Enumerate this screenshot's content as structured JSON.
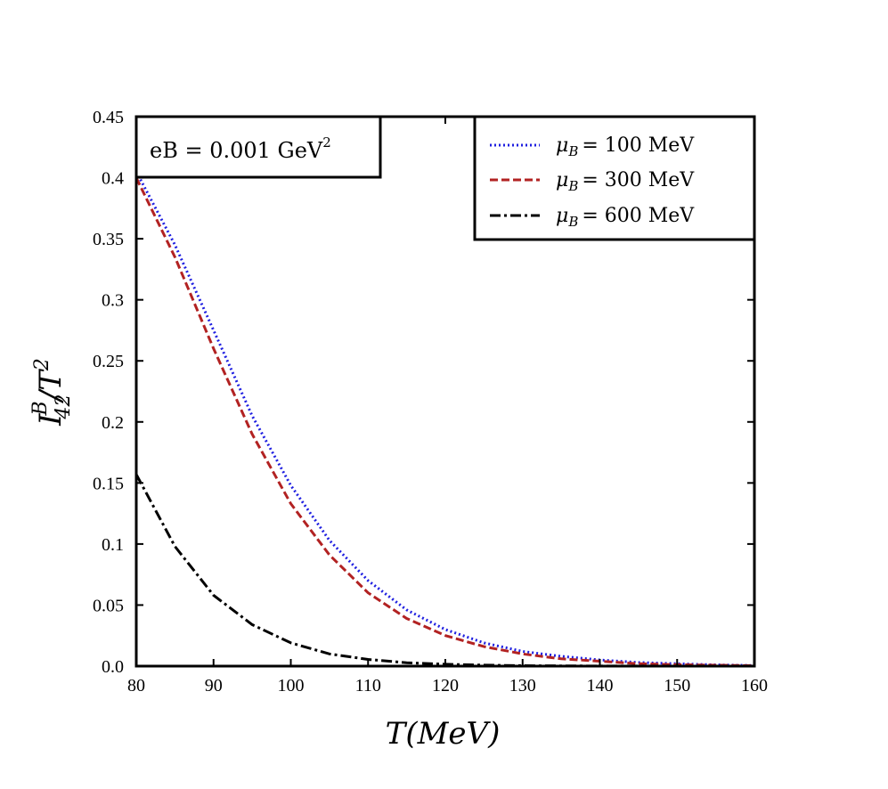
{
  "chart_data": {
    "type": "line",
    "title": "",
    "xlabel": "T(MeV)",
    "ylabel": "I_42^B / T^2",
    "xlim": [
      80,
      160
    ],
    "ylim": [
      0,
      0.45
    ],
    "x_ticks": [
      "80",
      "90",
      "100",
      "110",
      "120",
      "130",
      "140",
      "150",
      "160"
    ],
    "y_ticks": [
      "0.0",
      "0.05",
      "0.1",
      "0.15",
      "0.2",
      "0.25",
      "0.3",
      "0.35",
      "0.4",
      "0.45"
    ],
    "grid": false,
    "legend_position": "top-right",
    "annotation": "eB = 0.001 GeV",
    "annotation_superscript": "2",
    "series": [
      {
        "name": "μ_B = 100 MeV",
        "legend_label": "= 100 MeV",
        "color": "#1f1fe0",
        "style": "dotted",
        "x": [
          80,
          85,
          90,
          95,
          100,
          105,
          110,
          115,
          120,
          125,
          130,
          135,
          140,
          145,
          150,
          155,
          160
        ],
        "y": [
          0.405,
          0.345,
          0.275,
          0.205,
          0.148,
          0.103,
          0.07,
          0.046,
          0.03,
          0.019,
          0.012,
          0.008,
          0.005,
          0.003,
          0.002,
          0.001,
          0.0005
        ]
      },
      {
        "name": "μ_B = 300 MeV",
        "legend_label": "= 300 MeV",
        "color": "#b22222",
        "style": "dashed",
        "x": [
          80,
          85,
          90,
          95,
          100,
          105,
          110,
          115,
          120,
          125,
          130,
          135,
          140,
          145,
          150,
          155,
          160
        ],
        "y": [
          0.4,
          0.335,
          0.26,
          0.19,
          0.133,
          0.091,
          0.06,
          0.039,
          0.025,
          0.016,
          0.01,
          0.006,
          0.004,
          0.002,
          0.0012,
          0.0007,
          0.0004
        ]
      },
      {
        "name": "μ_B = 600 MeV",
        "legend_label": "= 600 MeV",
        "color": "#000000",
        "style": "dashdot",
        "x": [
          80,
          85,
          90,
          95,
          100,
          105,
          110,
          115,
          120,
          125,
          130,
          135,
          140,
          145,
          150,
          155,
          160
        ],
        "y": [
          0.157,
          0.098,
          0.058,
          0.034,
          0.019,
          0.01,
          0.0055,
          0.0028,
          0.0015,
          0.0008,
          0.0004,
          0.0002,
          0.0001,
          5e-05,
          3e-05,
          1e-05,
          0.0
        ]
      }
    ]
  }
}
